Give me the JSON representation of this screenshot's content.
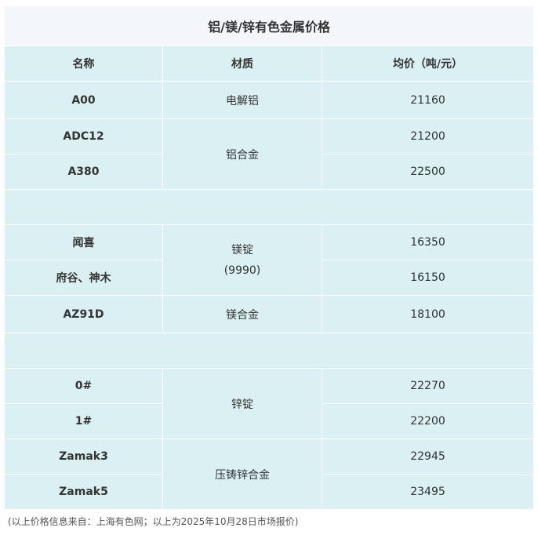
{
  "title": "铝/镁/锌有色金属价格",
  "headers": [
    "名称",
    "材质",
    "均价（吨/元）"
  ],
  "rows": [
    {
      "name": "A00",
      "material": "电解铝",
      "price": "21160"
    },
    {
      "name": "ADC12",
      "material": "铝合金",
      "price": "21200"
    },
    {
      "name": "A380",
      "price": "22500"
    },
    {
      "name": "闻喜",
      "material": "镁锭\n(9990)",
      "price": "16350"
    },
    {
      "name": "府谷、神木",
      "price": "16150"
    },
    {
      "name": "AZ91D",
      "material": "镁合金",
      "price": "18100"
    },
    {
      "name": "0#",
      "material": "锌锭",
      "price": "22270"
    },
    {
      "name": "1#",
      "price": "22200"
    },
    {
      "name": "Zamak3",
      "material": "压铸锌合金",
      "price": "22945"
    },
    {
      "name": "Zamak5",
      "price": "23495"
    }
  ],
  "footnote": "(以上价格信息来自：上海有色网；以上为2025年10月28日市场报价)",
  "colors": {
    "title_bg": "#f3f7fb",
    "cell_bg": "#daf0f3"
  }
}
